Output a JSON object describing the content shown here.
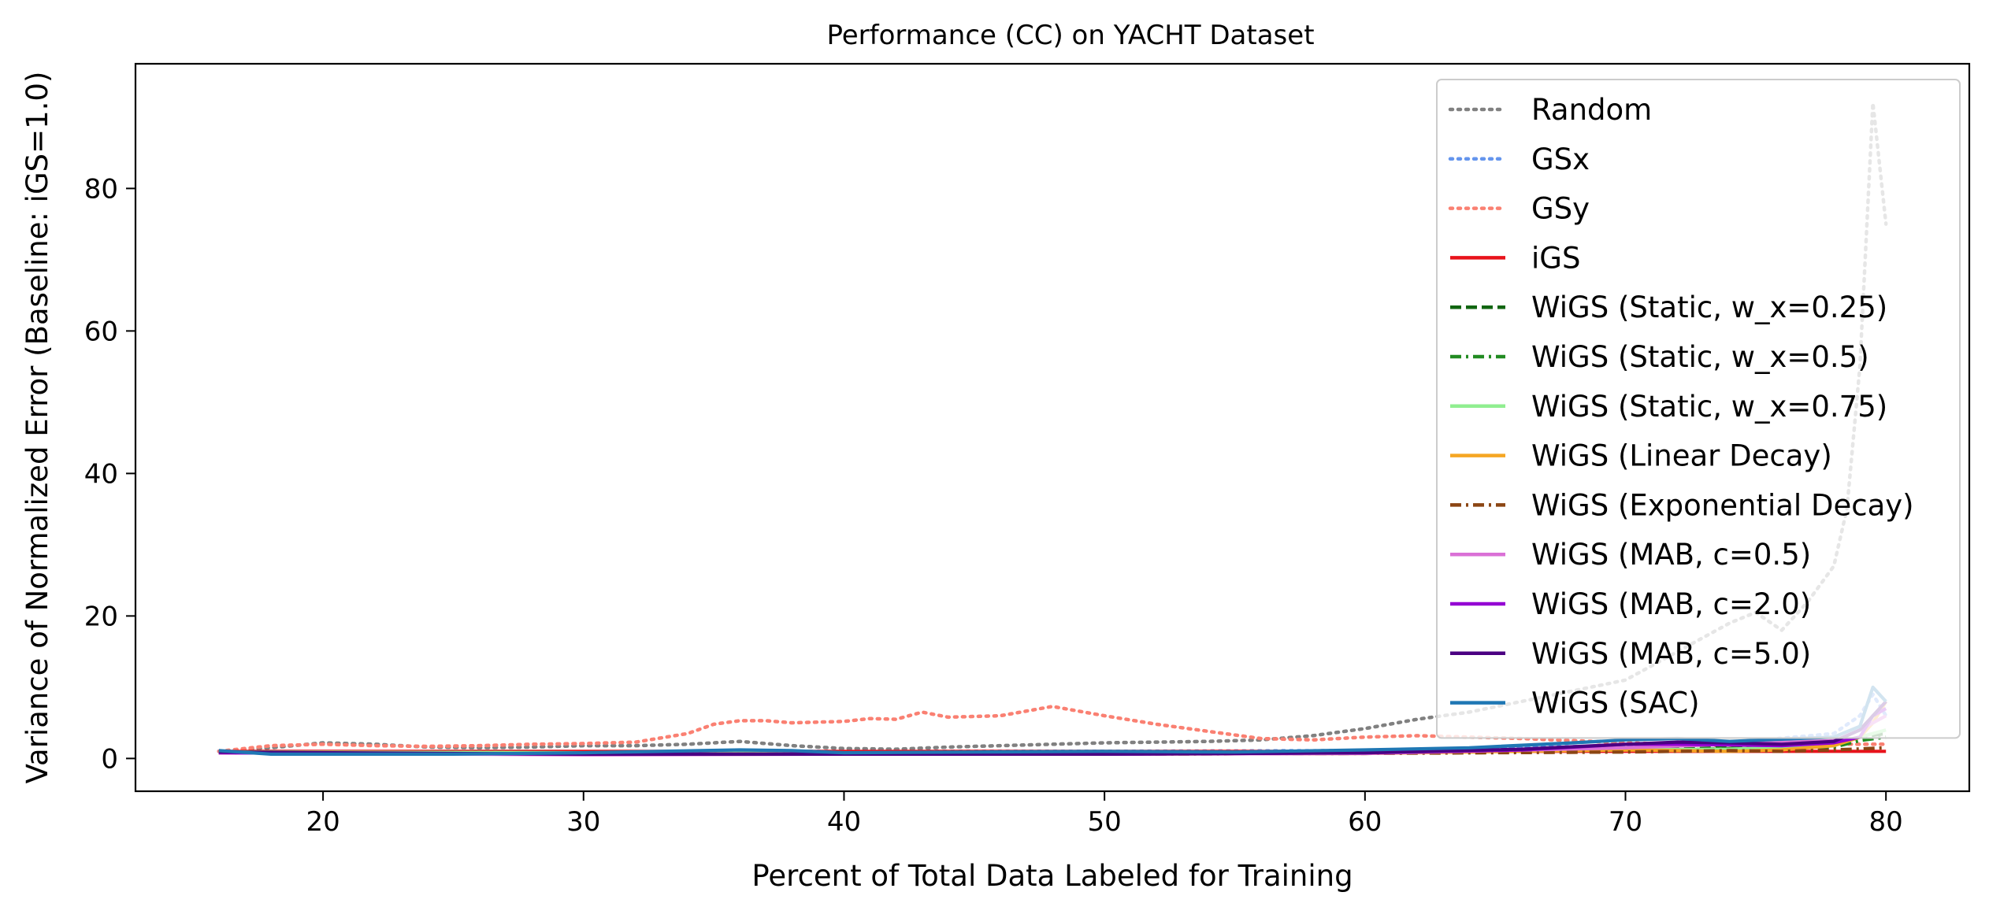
{
  "chart_data": {
    "type": "line",
    "title": "Performance (CC) on YACHT Dataset",
    "xlabel": "Percent of Total Data Labeled for Training",
    "ylabel": "Variance of Normalized Error (Baseline: iGS=1.0)",
    "xlim": [
      12.8,
      83.2
    ],
    "ylim": [
      -4.6,
      97.5
    ],
    "xticks": [
      20,
      30,
      40,
      50,
      60,
      70,
      80
    ],
    "yticks": [
      0,
      20,
      40,
      60,
      80
    ],
    "grid": false,
    "legend_position": "upper right",
    "series": [
      {
        "name": "Random",
        "color": "#808080",
        "style": "dotted",
        "x": [
          16,
          18,
          20,
          22,
          24,
          26,
          28,
          30,
          32,
          34,
          36,
          38,
          40,
          42,
          44,
          46,
          48,
          50,
          52,
          54,
          56,
          58,
          60,
          62,
          64,
          66,
          68,
          70,
          71,
          72,
          73,
          74,
          75,
          76,
          77,
          78,
          78.5,
          79,
          79.5,
          80
        ],
        "y": [
          1.0,
          1.5,
          2.2,
          2.0,
          1.6,
          1.5,
          1.6,
          1.8,
          1.8,
          2.0,
          2.4,
          1.8,
          1.4,
          1.3,
          1.6,
          1.8,
          2.0,
          2.2,
          2.3,
          2.4,
          2.6,
          3.2,
          4.2,
          5.5,
          6.5,
          8.0,
          9.5,
          11.0,
          13.0,
          15.0,
          17.0,
          19.0,
          20.5,
          18.0,
          22.0,
          27.0,
          35.0,
          55.0,
          92.0,
          75.0
        ]
      },
      {
        "name": "GSx",
        "color": "#6495ed",
        "style": "dotted",
        "x": [
          16,
          20,
          30,
          40,
          50,
          60,
          70,
          75,
          78,
          79,
          79.5,
          80
        ],
        "y": [
          1.0,
          0.8,
          0.9,
          1.0,
          1.0,
          1.1,
          1.8,
          2.5,
          3.5,
          6.0,
          9.0,
          6.0
        ]
      },
      {
        "name": "GSy",
        "color": "#fa8072",
        "style": "dotted",
        "x": [
          16,
          18,
          20,
          22,
          24,
          26,
          28,
          30,
          32,
          34,
          35,
          36,
          37,
          38,
          40,
          41,
          42,
          43,
          44,
          46,
          48,
          50,
          52,
          54,
          56,
          58,
          60,
          62,
          64,
          66,
          68,
          70,
          72,
          74,
          76,
          78,
          80
        ],
        "y": [
          1.0,
          1.8,
          2.0,
          1.8,
          1.7,
          1.8,
          2.0,
          2.1,
          2.3,
          3.5,
          4.8,
          5.3,
          5.3,
          5.0,
          5.2,
          5.6,
          5.5,
          6.5,
          5.8,
          6.0,
          7.3,
          6.0,
          4.8,
          3.8,
          2.8,
          2.6,
          3.0,
          3.2,
          3.0,
          2.8,
          2.5,
          2.2,
          2.0,
          1.8,
          1.8,
          2.0,
          2.0
        ]
      },
      {
        "name": "iGS",
        "color": "#e8131b",
        "style": "solid",
        "x": [
          16,
          80
        ],
        "y": [
          1.0,
          1.0
        ]
      },
      {
        "name": "WiGS (Static, w_x=0.25)",
        "color": "#116611",
        "style": "dashed",
        "x": [
          16,
          30,
          40,
          50,
          60,
          70,
          72,
          74,
          76,
          78,
          79,
          80
        ],
        "y": [
          0.9,
          0.7,
          0.8,
          0.7,
          0.8,
          1.2,
          1.4,
          1.6,
          1.5,
          2.0,
          3.0,
          3.5
        ]
      },
      {
        "name": "WiGS (Static, w_x=0.5)",
        "color": "#228b22",
        "style": "dashdot",
        "x": [
          16,
          30,
          36,
          40,
          50,
          60,
          70,
          72,
          74,
          76,
          78,
          79,
          80
        ],
        "y": [
          0.9,
          0.8,
          1.0,
          0.7,
          0.8,
          0.9,
          1.3,
          1.2,
          1.4,
          1.3,
          1.6,
          2.5,
          3.0
        ]
      },
      {
        "name": "WiGS (Static, w_x=0.75)",
        "color": "#90ee90",
        "style": "solid",
        "x": [
          16,
          30,
          40,
          50,
          60,
          70,
          74,
          78,
          79,
          80
        ],
        "y": [
          0.9,
          0.8,
          0.8,
          0.8,
          0.9,
          1.2,
          1.3,
          1.8,
          3.0,
          4.0
        ]
      },
      {
        "name": "WiGS (Linear Decay)",
        "color": "#f5a623",
        "style": "solid",
        "x": [
          16,
          30,
          40,
          50,
          60,
          66,
          70,
          74,
          76,
          78,
          79,
          79.5,
          80
        ],
        "y": [
          0.8,
          0.6,
          0.6,
          0.6,
          0.7,
          1.0,
          1.2,
          1.0,
          1.2,
          1.8,
          3.0,
          5.0,
          8.0
        ]
      },
      {
        "name": "WiGS (Exponential Decay)",
        "color": "#8b4513",
        "style": "dashdot",
        "x": [
          16,
          30,
          40,
          50,
          60,
          70,
          72,
          74,
          76,
          78,
          80
        ],
        "y": [
          0.8,
          0.6,
          0.6,
          0.6,
          0.7,
          0.9,
          1.0,
          1.1,
          1.0,
          1.2,
          1.5
        ]
      },
      {
        "name": "WiGS (MAB, c=0.5)",
        "color": "#da70d6",
        "style": "solid",
        "x": [
          16,
          30,
          40,
          50,
          60,
          70,
          74,
          78,
          79,
          80
        ],
        "y": [
          0.8,
          0.5,
          0.6,
          0.6,
          0.7,
          1.5,
          2.0,
          2.5,
          4.0,
          6.0
        ]
      },
      {
        "name": "WiGS (MAB, c=2.0)",
        "color": "#9400d3",
        "style": "solid",
        "x": [
          16,
          30,
          40,
          50,
          60,
          66,
          70,
          72,
          74,
          76,
          78,
          79,
          79.5,
          80
        ],
        "y": [
          0.8,
          0.6,
          0.6,
          0.6,
          0.8,
          1.2,
          2.0,
          2.0,
          1.9,
          1.8,
          2.2,
          3.0,
          6.0,
          7.0
        ]
      },
      {
        "name": "WiGS (MAB, c=5.0)",
        "color": "#4b0082",
        "style": "solid",
        "x": [
          16,
          30,
          40,
          50,
          60,
          66,
          70,
          72,
          74,
          76,
          78,
          79,
          80
        ],
        "y": [
          0.9,
          0.6,
          0.6,
          0.6,
          0.8,
          1.3,
          2.0,
          2.3,
          2.2,
          2.0,
          2.4,
          4.0,
          8.0
        ]
      },
      {
        "name": "WiGS (SAC)",
        "color": "#1f77b4",
        "style": "solid",
        "x": [
          16,
          18,
          20,
          25,
          30,
          36,
          38,
          40,
          45,
          50,
          55,
          60,
          64,
          68,
          70,
          72,
          74,
          76,
          78,
          79,
          79.5,
          80
        ],
        "y": [
          1.1,
          0.6,
          0.6,
          0.6,
          0.8,
          1.2,
          1.1,
          0.8,
          0.9,
          1.0,
          0.9,
          1.2,
          1.5,
          2.2,
          2.6,
          2.8,
          2.4,
          2.7,
          3.0,
          4.5,
          10.0,
          8.0
        ]
      }
    ]
  }
}
